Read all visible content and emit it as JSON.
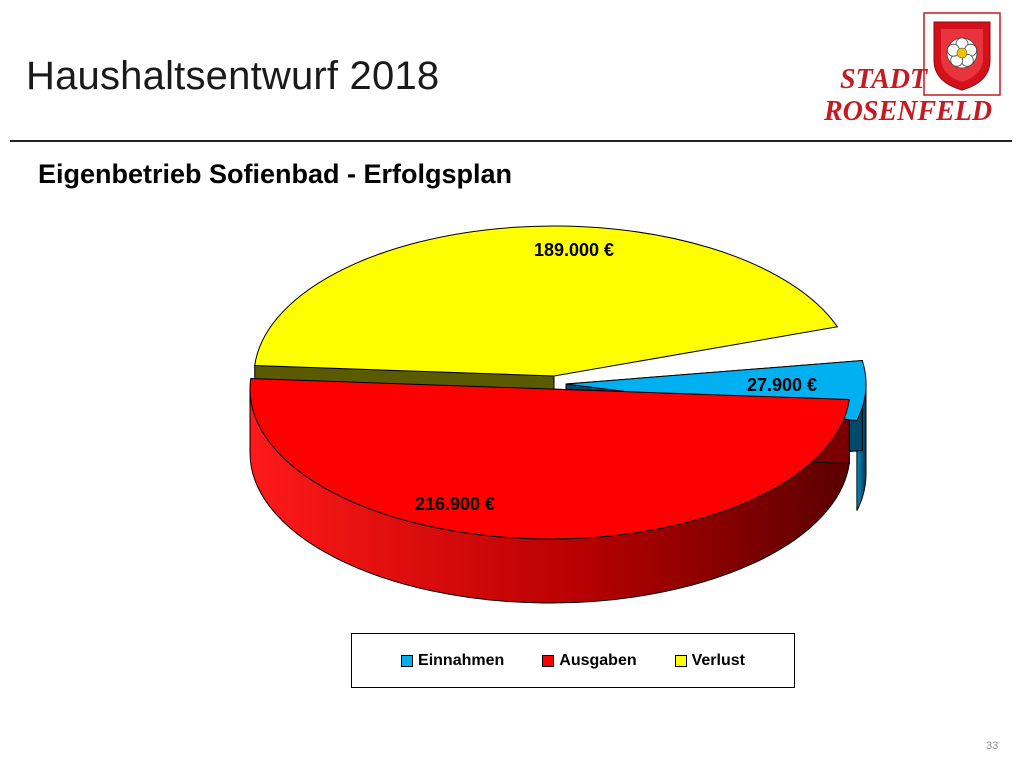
{
  "slide": {
    "title": "Haushaltsentwurf 2018",
    "subtitle": "Eigenbetrieb Sofienbad - Erfolgsplan",
    "page_number": "33"
  },
  "logo": {
    "line1": "STADT",
    "line2": "ROSENFELD",
    "shield_color": "#d4101b",
    "text_color": "#c41a22",
    "icon": "rose-shield-icon"
  },
  "chart_data": {
    "type": "pie",
    "style": "3d-exploded",
    "title": "",
    "slices": [
      {
        "name": "Einnahmen",
        "value": 27900,
        "label": "27.900 €",
        "color": "#00b0f0"
      },
      {
        "name": "Ausgaben",
        "value": 216900,
        "label": "216.900 €",
        "color": "#ff0000"
      },
      {
        "name": "Verlust",
        "value": 189000,
        "label": "189.000 €",
        "color": "#ffff00"
      }
    ],
    "legend": {
      "placement": "bottom",
      "entries": [
        "Einnahmen",
        "Ausgaben",
        "Verlust"
      ]
    }
  }
}
